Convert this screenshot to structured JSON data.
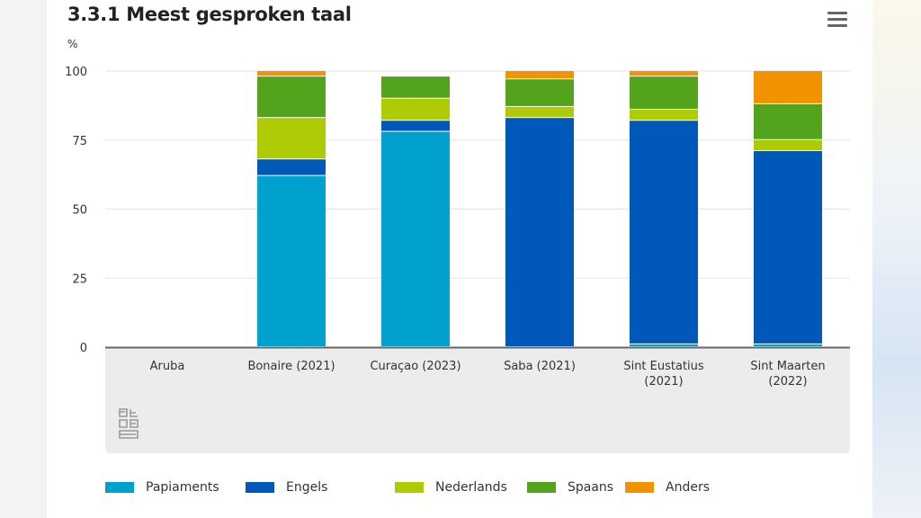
{
  "chart_data": {
    "type": "bar",
    "stacked": true,
    "title": "3.3.1 Meest gesproken taal",
    "ylabel": "%",
    "xlabel": "",
    "ylim": [
      0,
      100
    ],
    "yticks": [
      0,
      25,
      50,
      75,
      100
    ],
    "grid": true,
    "legend_position": "bottom",
    "categories": [
      "Aruba",
      "Bonaire (2021)",
      "Curaçao (2023)",
      "Saba (2021)",
      "Sint Eustatius (2021)",
      "Sint Maarten (2022)"
    ],
    "series": [
      {
        "name": "Papiaments",
        "color": "#00a1cd",
        "values": [
          0,
          62,
          78,
          0,
          1,
          1
        ]
      },
      {
        "name": "Engels",
        "color": "#0058b8",
        "values": [
          0,
          6,
          4,
          83,
          81,
          70
        ]
      },
      {
        "name": "Nederlands",
        "color": "#afcb05",
        "values": [
          0,
          15,
          8,
          4,
          4,
          4
        ]
      },
      {
        "name": "Spaans",
        "color": "#53a31d",
        "values": [
          0,
          15,
          8,
          10,
          12,
          13
        ]
      },
      {
        "name": "Anders",
        "color": "#f39200",
        "values": [
          0,
          2,
          0,
          3,
          2,
          12
        ]
      }
    ]
  },
  "icons": {
    "menu": "hamburger-menu-icon",
    "logo": "cbs-logo"
  }
}
